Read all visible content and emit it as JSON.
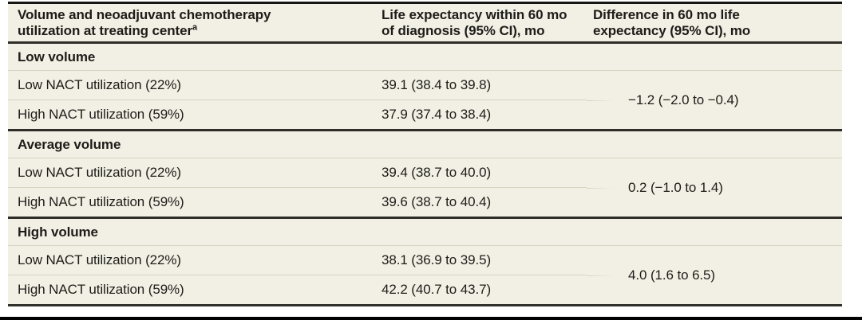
{
  "colors": {
    "row_background": "#f2f0e4",
    "dark_rule": "#2e2d28",
    "light_rule": "#d7d4c1",
    "text": "#1d1c19"
  },
  "table": {
    "columns": [
      {
        "label": "Volume and neoadjuvant chemotherapy utilization at treating center",
        "footnote_marker": "a"
      },
      {
        "label": "Life expectancy within 60 mo of diagnosis (95% CI), mo"
      },
      {
        "label": "Difference in 60 mo life expectancy (95% CI), mo"
      }
    ],
    "sections": [
      {
        "header": "Low volume",
        "rows": [
          {
            "label": "Low NACT utilization (22%)",
            "life_expectancy": "39.1 (38.4 to 39.8)"
          },
          {
            "label": "High NACT utilization (59%)",
            "life_expectancy": "37.9 (37.4 to 38.4)"
          }
        ],
        "difference": "−1.2 (−2.0 to −0.4)"
      },
      {
        "header": "Average volume",
        "rows": [
          {
            "label": "Low NACT utilization (22%)",
            "life_expectancy": "39.4 (38.7 to 40.0)"
          },
          {
            "label": "High NACT utilization (59%)",
            "life_expectancy": "39.6 (38.7 to 40.4)"
          }
        ],
        "difference": "0.2 (−1.0 to 1.4)"
      },
      {
        "header": "High volume",
        "rows": [
          {
            "label": "Low NACT utilization (22%)",
            "life_expectancy": "38.1 (36.9 to 39.5)"
          },
          {
            "label": "High NACT utilization (59%)",
            "life_expectancy": "42.2 (40.7 to 43.7)"
          }
        ],
        "difference": "4.0 (1.6 to 6.5)"
      }
    ]
  }
}
